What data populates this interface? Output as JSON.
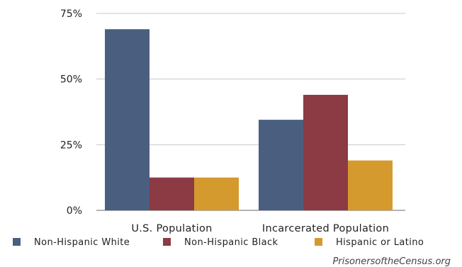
{
  "chart_data": {
    "type": "bar",
    "categories": [
      "U.S. Population",
      "Incarcerated Population"
    ],
    "series": [
      {
        "name": "Non-Hispanic White",
        "values": [
          69,
          34.5
        ],
        "color": "#4a5e80"
      },
      {
        "name": "Non-Hispanic Black",
        "values": [
          12.5,
          44
        ],
        "color": "#8c3a43"
      },
      {
        "name": "Hispanic or Latino",
        "values": [
          12.5,
          19
        ],
        "color": "#d49a2e"
      }
    ],
    "ylim": [
      0,
      75
    ],
    "yticks": [
      0,
      25,
      50,
      75
    ],
    "ytick_labels": [
      "0%",
      "25%",
      "50%",
      "75%"
    ],
    "grid": true,
    "legend_position": "bottom",
    "source": "PrisonersoftheCensus.org"
  }
}
